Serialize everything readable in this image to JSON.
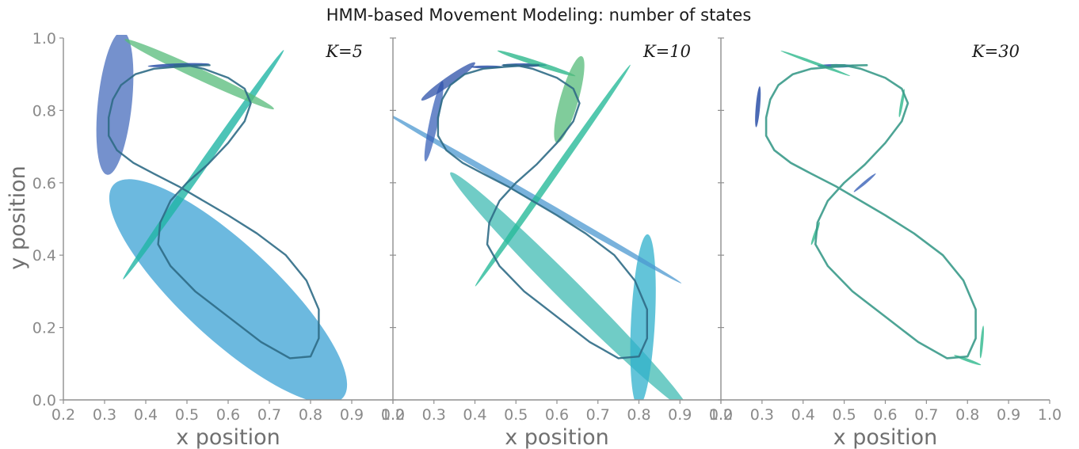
{
  "title": "HMM-based Movement Modeling: number of states",
  "chart_data": [
    {
      "type": "scatter",
      "annotation": "K=5",
      "xlabel": "x position",
      "ylabel": "y position",
      "xlim": [
        0.2,
        1.0
      ],
      "ylim": [
        0.0,
        1.0
      ],
      "xticks": [
        "0.2",
        "0.3",
        "0.4",
        "0.5",
        "0.6",
        "0.7",
        "0.8",
        "0.9",
        "1.0"
      ],
      "yticks": [
        "0.0",
        "0.2",
        "0.4",
        "0.6",
        "0.8",
        "1.0"
      ],
      "trajectory_color": "#2f6b86",
      "ellipses": [
        {
          "cx": 0.6,
          "cy": 0.3,
          "rx": 0.38,
          "ry": 0.13,
          "angle": -43,
          "color": "#3ba2d4",
          "opacity": 0.75
        },
        {
          "cx": 0.325,
          "cy": 0.82,
          "rx": 0.175,
          "ry": 0.047,
          "angle": 84,
          "color": "#3a62b8",
          "opacity": 0.7
        },
        {
          "cx": 0.54,
          "cy": 0.65,
          "rx": 0.34,
          "ry": 0.011,
          "angle": 55,
          "color": "#20b5a5",
          "opacity": 0.8
        },
        {
          "cx": 0.53,
          "cy": 0.9,
          "rx": 0.2,
          "ry": 0.015,
          "angle": -25,
          "color": "#55bb7a",
          "opacity": 0.75
        },
        {
          "cx": 0.48,
          "cy": 0.925,
          "rx": 0.075,
          "ry": 0.005,
          "angle": 2,
          "color": "#2c50a8",
          "opacity": 0.85
        }
      ]
    },
    {
      "type": "scatter",
      "annotation": "K=10",
      "xlabel": "x position",
      "ylim": [
        0.0,
        1.0
      ],
      "xlim": [
        0.2,
        1.0
      ],
      "xticks": [
        "0.2",
        "0.3",
        "0.4",
        "0.5",
        "0.6",
        "0.7",
        "0.8",
        "0.9",
        "1.0"
      ],
      "trajectory_color": "#2f6b86",
      "ellipses": [
        {
          "cx": 0.63,
          "cy": 0.3,
          "rx": 0.41,
          "ry": 0.032,
          "angle": -45,
          "color": "#33b7ae",
          "opacity": 0.7
        },
        {
          "cx": 0.81,
          "cy": 0.22,
          "rx": 0.21,
          "ry": 0.033,
          "angle": 87,
          "color": "#2fb0cc",
          "opacity": 0.75
        },
        {
          "cx": 0.54,
          "cy": 0.56,
          "rx": 0.42,
          "ry": 0.009,
          "angle": -30,
          "color": "#4c98d0",
          "opacity": 0.75
        },
        {
          "cx": 0.59,
          "cy": 0.62,
          "rx": 0.33,
          "ry": 0.009,
          "angle": 55,
          "color": "#28ba9a",
          "opacity": 0.8
        },
        {
          "cx": 0.3,
          "cy": 0.77,
          "rx": 0.1,
          "ry": 0.012,
          "angle": 78,
          "color": "#3a62b8",
          "opacity": 0.75
        },
        {
          "cx": 0.335,
          "cy": 0.88,
          "rx": 0.08,
          "ry": 0.012,
          "angle": 35,
          "color": "#2c50a8",
          "opacity": 0.75
        },
        {
          "cx": 0.43,
          "cy": 0.92,
          "rx": 0.04,
          "ry": 0.004,
          "angle": 0,
          "color": "#2c50a8",
          "opacity": 0.85
        },
        {
          "cx": 0.52,
          "cy": 0.925,
          "rx": 0.055,
          "ry": 0.005,
          "angle": 0,
          "color": "#2c50a8",
          "opacity": 0.85
        },
        {
          "cx": 0.55,
          "cy": 0.93,
          "rx": 0.1,
          "ry": 0.007,
          "angle": -18,
          "color": "#2db88c",
          "opacity": 0.8
        },
        {
          "cx": 0.63,
          "cy": 0.83,
          "rx": 0.11,
          "ry": 0.025,
          "angle": 74,
          "color": "#55bb7a",
          "opacity": 0.75
        }
      ]
    },
    {
      "type": "scatter",
      "annotation": "K=30",
      "xlabel": "x position",
      "ylim": [
        0.0,
        1.0
      ],
      "xlim": [
        0.2,
        1.0
      ],
      "xticks": [
        "0.2",
        "0.3",
        "0.4",
        "0.5",
        "0.6",
        "0.7",
        "0.8",
        "0.9",
        "1.0"
      ],
      "trajectory_color": "#3a9a8a",
      "ellipses": [
        {
          "cx": 0.29,
          "cy": 0.81,
          "rx": 0.05,
          "ry": 0.006,
          "angle": 85,
          "color": "#2c50a8",
          "opacity": 0.85
        },
        {
          "cx": 0.48,
          "cy": 0.923,
          "rx": 0.045,
          "ry": 0.005,
          "angle": 0,
          "color": "#2c50a8",
          "opacity": 0.85
        },
        {
          "cx": 0.43,
          "cy": 0.93,
          "rx": 0.09,
          "ry": 0.004,
          "angle": -20,
          "color": "#2db88c",
          "opacity": 0.8
        },
        {
          "cx": 0.64,
          "cy": 0.82,
          "rx": 0.035,
          "ry": 0.004,
          "angle": 80,
          "color": "#2db88c",
          "opacity": 0.8
        },
        {
          "cx": 0.835,
          "cy": 0.16,
          "rx": 0.04,
          "ry": 0.004,
          "angle": 85,
          "color": "#2db88c",
          "opacity": 0.8
        },
        {
          "cx": 0.8,
          "cy": 0.11,
          "rx": 0.035,
          "ry": 0.004,
          "angle": -20,
          "color": "#2db88c",
          "opacity": 0.8
        },
        {
          "cx": 0.43,
          "cy": 0.46,
          "rx": 0.03,
          "ry": 0.004,
          "angle": 70,
          "color": "#2db88c",
          "opacity": 0.8
        },
        {
          "cx": 0.55,
          "cy": 0.6,
          "rx": 0.035,
          "ry": 0.004,
          "angle": 40,
          "color": "#3a62b8",
          "opacity": 0.8
        }
      ]
    }
  ],
  "trajectory": {
    "x": [
      0.555,
      0.52,
      0.47,
      0.42,
      0.375,
      0.34,
      0.32,
      0.31,
      0.31,
      0.33,
      0.37,
      0.42,
      0.48,
      0.54,
      0.6,
      0.67,
      0.74,
      0.79,
      0.82,
      0.82,
      0.8,
      0.75,
      0.68,
      0.6,
      0.52,
      0.46,
      0.43,
      0.435,
      0.46,
      0.5,
      0.55,
      0.6,
      0.64,
      0.655,
      0.64,
      0.6,
      0.54,
      0.5,
      0.47
    ],
    "y": [
      0.925,
      0.924,
      0.92,
      0.915,
      0.9,
      0.87,
      0.83,
      0.78,
      0.73,
      0.69,
      0.655,
      0.625,
      0.59,
      0.55,
      0.51,
      0.46,
      0.4,
      0.33,
      0.25,
      0.17,
      0.12,
      0.115,
      0.16,
      0.23,
      0.3,
      0.37,
      0.43,
      0.49,
      0.55,
      0.6,
      0.65,
      0.71,
      0.77,
      0.82,
      0.86,
      0.89,
      0.915,
      0.925,
      0.925
    ]
  }
}
